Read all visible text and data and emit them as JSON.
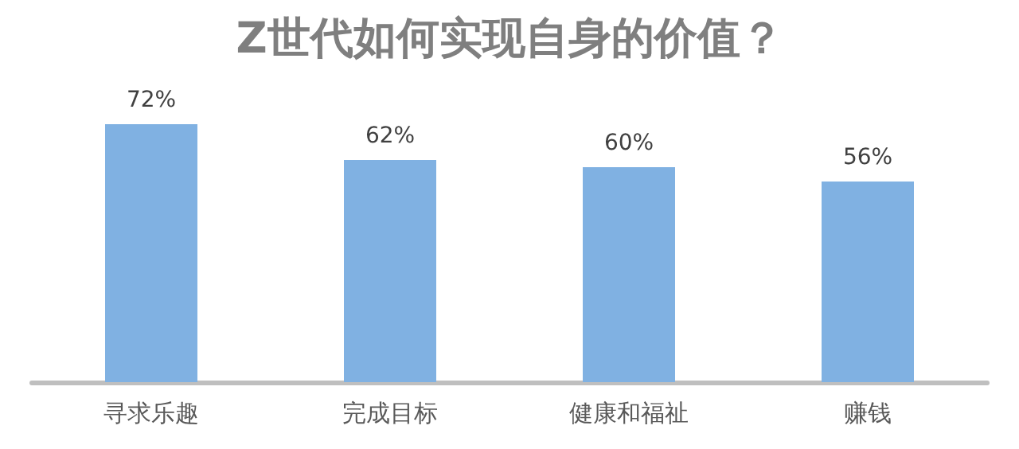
{
  "chart_data": {
    "type": "bar",
    "title": "Z世代如何实现自身的价值？",
    "categories": [
      "寻求乐趣",
      "完成目标",
      "健康和福祉",
      "赚钱"
    ],
    "values": [
      72,
      62,
      60,
      56
    ],
    "color": "#80b1e2",
    "value_labels": [
      "72%",
      "62%",
      "60%",
      "56%"
    ]
  }
}
